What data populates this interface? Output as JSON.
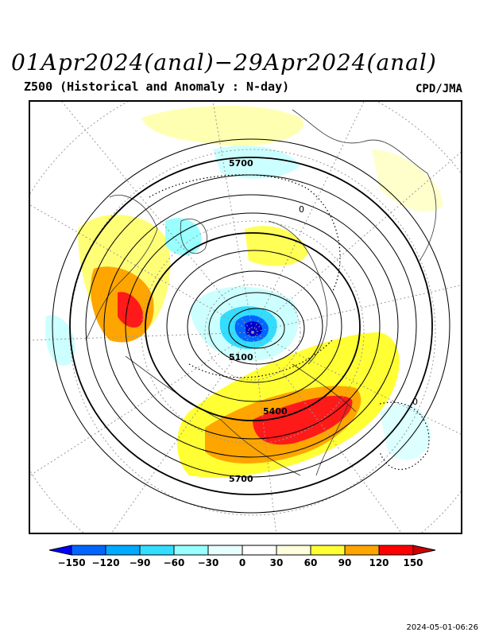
{
  "header": {
    "title": "01Apr2024(anal)−29Apr2024(anal)",
    "subtitle": "Z500 (Historical and Anomaly : N-day)",
    "credit": "CPD/JMA"
  },
  "map": {
    "projection": "north-polar-stereographic",
    "contour_labels": [
      "5700",
      "0",
      "5100",
      "5400",
      "5700",
      "0"
    ],
    "anomaly_colors": {
      "strong_positive": "#ff0000",
      "positive_120": "#ffa500",
      "positive_90": "#ffff33",
      "positive_60": "#ffffaa",
      "positive_30": "#ffffe8",
      "negative_30": "#e8ffff",
      "negative_60": "#99ffff",
      "negative_90": "#33e6ff",
      "negative_120": "#0099ff",
      "strong_negative": "#0000ff"
    }
  },
  "legend": {
    "tick_labels": [
      "−150",
      "−120",
      "−90",
      "−60",
      "−30",
      "0",
      "30",
      "60",
      "90",
      "120",
      "150"
    ],
    "colors": [
      "#0000ff",
      "#0066ff",
      "#00aaff",
      "#33ddff",
      "#99ffff",
      "#e8ffff",
      "#ffffff",
      "#ffffdd",
      "#ffff33",
      "#ffa500",
      "#ff0000",
      "#cc0000"
    ]
  },
  "footer": {
    "timestamp": "2024-05-01-06:26"
  }
}
